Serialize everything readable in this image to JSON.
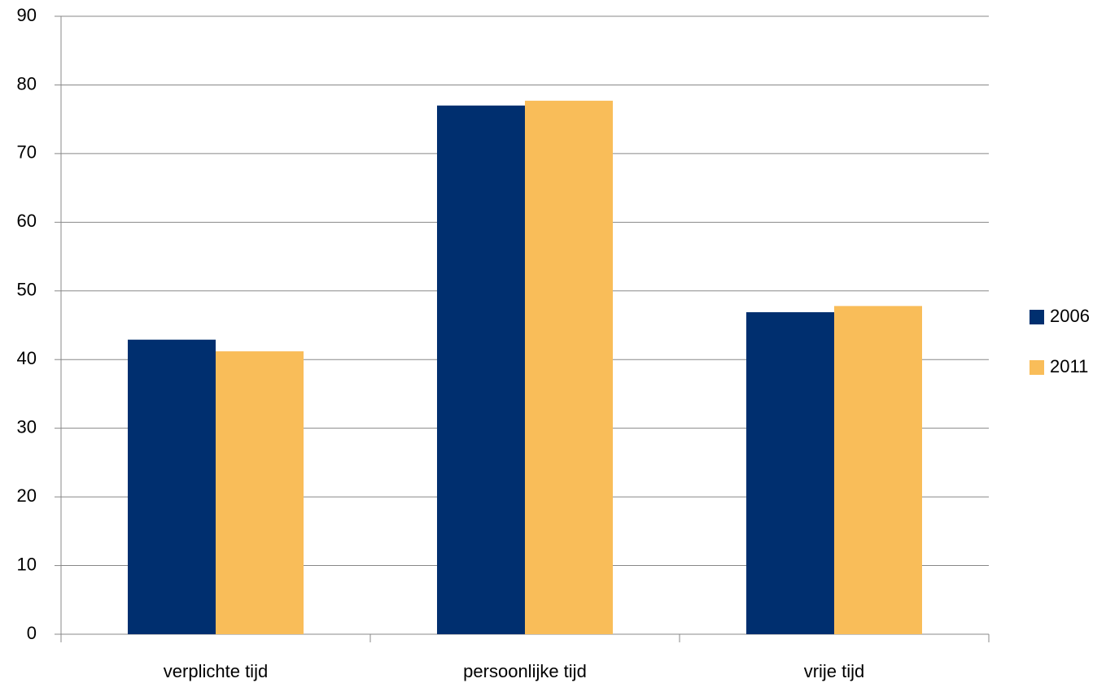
{
  "chart_data": {
    "type": "bar",
    "categories": [
      "verplichte tijd",
      "persoonlijke tijd",
      "vrije tijd"
    ],
    "series": [
      {
        "name": "2006",
        "color": "#002f6f",
        "values": [
          42.9,
          77.0,
          46.9
        ]
      },
      {
        "name": "2011",
        "color": "#f9bd59",
        "values": [
          41.2,
          77.7,
          47.8
        ]
      }
    ],
    "ylim": [
      0,
      90
    ],
    "yticks": [
      0,
      10,
      20,
      30,
      40,
      50,
      60,
      70,
      80,
      90
    ],
    "grid": true,
    "legend": "right"
  }
}
